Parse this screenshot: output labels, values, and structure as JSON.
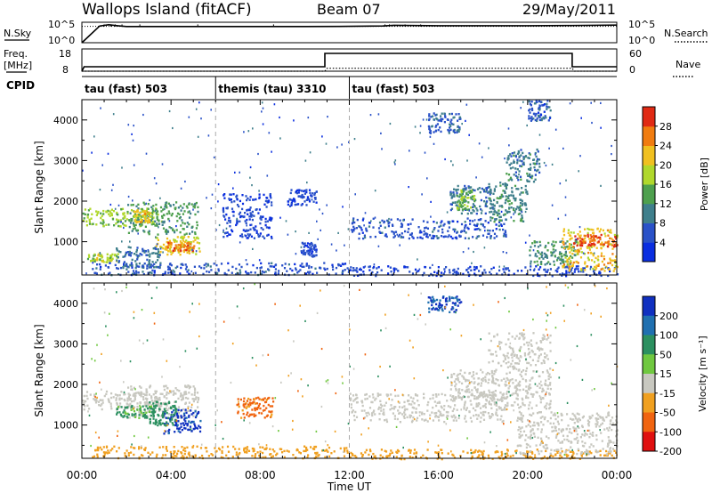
{
  "header": {
    "station": "Wallops Island (fitACF)",
    "beam": "Beam 07",
    "date": "29/May/2011"
  },
  "panels": {
    "nsky": {
      "left_label": "N.Sky",
      "right_label": "N.Search",
      "left_ticks": [
        "10^5",
        "10^0"
      ],
      "right_ticks": [
        "10^5",
        "10^0"
      ]
    },
    "freq": {
      "left_label_line1": "Freq.",
      "left_label_line2": "[MHz]",
      "right_label": "Nave",
      "left_ticks": [
        "18",
        "8"
      ],
      "right_ticks": [
        "60",
        "0"
      ]
    },
    "cpid": {
      "label": "CPID"
    }
  },
  "chart_data": [
    {
      "type": "line",
      "name": "N.Sky / N.Search",
      "x_unit": "hours UT",
      "y_scale": "log",
      "ylim": [
        1,
        100000
      ],
      "series": [
        {
          "name": "N.Sky",
          "style": "solid",
          "x": [
            0,
            0.8,
            1.2,
            1.6,
            2,
            4,
            6,
            8,
            10,
            12,
            13.5,
            14,
            16,
            18,
            20,
            22,
            24
          ],
          "y": [
            1,
            12000,
            25000,
            14000,
            9000,
            9000,
            9000,
            9000,
            9000,
            10000,
            12000,
            18000,
            14000,
            14000,
            14000,
            16000,
            20000
          ]
        },
        {
          "name": "N.Search",
          "style": "dotted",
          "x": [
            0,
            24
          ],
          "y": [
            10000,
            10000
          ]
        }
      ]
    },
    {
      "type": "line",
      "name": "Freq / Nave",
      "x_unit": "hours UT",
      "y_left_range_MHz": [
        8,
        18
      ],
      "y_right_range": [
        0,
        60
      ],
      "series": [
        {
          "name": "Freq.",
          "style": "solid",
          "x": [
            0,
            0.1,
            10.9,
            10.9,
            22,
            22,
            24
          ],
          "y": [
            8,
            10,
            10,
            16,
            16,
            10,
            10
          ]
        },
        {
          "name": "Nave",
          "style": "dotted",
          "x": [
            0,
            10.9,
            11,
            22,
            22.1,
            24
          ],
          "y": [
            0,
            0,
            8,
            8,
            0,
            0
          ]
        }
      ]
    },
    {
      "type": "table",
      "name": "CPID",
      "segments": [
        {
          "start": 0,
          "end": 6,
          "label": "tau (fast) 503"
        },
        {
          "start": 6,
          "end": 12,
          "label": "themis (tau) 3310"
        },
        {
          "start": 12,
          "end": 24,
          "label": "tau (fast) 503"
        }
      ]
    },
    {
      "type": "heatmap",
      "name": "Power",
      "x_unit": "hours UT",
      "xlim": [
        0,
        24
      ],
      "ylim": [
        180,
        4500
      ],
      "ylabel": "Slant Range [km]",
      "yticks": [
        1000,
        2000,
        3000,
        4000
      ],
      "colorbar": {
        "label": "Power [dB]",
        "range": [
          0,
          32
        ],
        "ticks": [
          4,
          8,
          12,
          16,
          20,
          24,
          28
        ],
        "colors": [
          "#0a2ee0",
          "#2a52c8",
          "#3f7f8c",
          "#4ea04e",
          "#b0d82c",
          "#f0c020",
          "#f07c10",
          "#e02a14"
        ]
      },
      "patches": [
        {
          "x": [
            0,
            3.6
          ],
          "y": [
            1400,
            1850
          ],
          "value": 17
        },
        {
          "x": [
            2,
            5.2
          ],
          "y": [
            1200,
            2000
          ],
          "value": 13
        },
        {
          "x": [
            2.3,
            3.1
          ],
          "y": [
            1500,
            1800
          ],
          "value": 22
        },
        {
          "x": [
            3.2,
            5.3
          ],
          "y": [
            700,
            1150
          ],
          "value": 20
        },
        {
          "x": [
            3.8,
            5.0
          ],
          "y": [
            800,
            1000
          ],
          "value": 26
        },
        {
          "x": [
            0.2,
            1.6
          ],
          "y": [
            520,
            720
          ],
          "value": 18
        },
        {
          "x": [
            1.5,
            3.5
          ],
          "y": [
            380,
            900
          ],
          "value": 9
        },
        {
          "x": [
            0.4,
            12
          ],
          "y": [
            200,
            500
          ],
          "value": 6
        },
        {
          "x": [
            6.3,
            8.5
          ],
          "y": [
            1100,
            2200
          ],
          "value": 5
        },
        {
          "x": [
            9.2,
            10.5
          ],
          "y": [
            1900,
            2300
          ],
          "value": 5
        },
        {
          "x": [
            9.8,
            10.5
          ],
          "y": [
            650,
            1000
          ],
          "value": 5
        },
        {
          "x": [
            12,
            24
          ],
          "y": [
            180,
            420
          ],
          "value": 5
        },
        {
          "x": [
            12,
            19
          ],
          "y": [
            1100,
            1600
          ],
          "value": 6
        },
        {
          "x": [
            16.5,
            18.5
          ],
          "y": [
            1700,
            2400
          ],
          "value": 9
        },
        {
          "x": [
            16.8,
            17.6
          ],
          "y": [
            1800,
            2300
          ],
          "value": 15
        },
        {
          "x": [
            18.2,
            20.0
          ],
          "y": [
            1500,
            2500
          ],
          "value": 11
        },
        {
          "x": [
            19.0,
            20.5
          ],
          "y": [
            2500,
            3300
          ],
          "value": 10
        },
        {
          "x": [
            20.0,
            22.2
          ],
          "y": [
            450,
            1050
          ],
          "value": 12
        },
        {
          "x": [
            21.5,
            24
          ],
          "y": [
            300,
            1350
          ],
          "value": 22
        },
        {
          "x": [
            22.0,
            24
          ],
          "y": [
            900,
            1200
          ],
          "value": 28
        },
        {
          "x": [
            15.5,
            17.0
          ],
          "y": [
            3700,
            4200
          ],
          "value": 7
        },
        {
          "x": [
            20.0,
            21.0
          ],
          "y": [
            4000,
            4500
          ],
          "value": 6
        }
      ]
    },
    {
      "type": "heatmap",
      "name": "Velocity",
      "x_unit": "hours UT",
      "xlim": [
        0,
        24
      ],
      "ylim": [
        180,
        4500
      ],
      "xticks": [
        "00:00",
        "04:00",
        "08:00",
        "12:00",
        "16:00",
        "20:00",
        "00:00"
      ],
      "xlabel": "Time UT",
      "ylabel": "Slant Range [km]",
      "yticks": [
        1000,
        2000,
        3000,
        4000
      ],
      "colorbar": {
        "label": "Velocity [m s⁻¹]",
        "ticks": [
          "200",
          "100",
          "50",
          "15",
          "-15",
          "-50",
          "-100",
          "-200"
        ],
        "colors": [
          "#1030c0",
          "#2070b0",
          "#2c9060",
          "#70c840",
          "#c8c8c0",
          "#f0a020",
          "#f06410",
          "#e01010"
        ]
      },
      "patches": [
        {
          "x": [
            0,
            3.6
          ],
          "y": [
            1400,
            1850
          ],
          "value": 0
        },
        {
          "x": [
            2,
            5.2
          ],
          "y": [
            1200,
            2000
          ],
          "value": 0
        },
        {
          "x": [
            3.6,
            5.3
          ],
          "y": [
            800,
            1400
          ],
          "value": 160
        },
        {
          "x": [
            3.0,
            4.2
          ],
          "y": [
            1000,
            1600
          ],
          "value": 60
        },
        {
          "x": [
            1.5,
            3.2
          ],
          "y": [
            1200,
            1500
          ],
          "value": 40
        },
        {
          "x": [
            6.9,
            8.6
          ],
          "y": [
            1200,
            1700
          ],
          "value": -60
        },
        {
          "x": [
            0.4,
            12
          ],
          "y": [
            200,
            500
          ],
          "value": -30
        },
        {
          "x": [
            12,
            24
          ],
          "y": [
            180,
            420
          ],
          "value": -30
        },
        {
          "x": [
            12,
            19
          ],
          "y": [
            1100,
            1800
          ],
          "value": 0
        },
        {
          "x": [
            16.5,
            18.5
          ],
          "y": [
            1700,
            2400
          ],
          "value": 0
        },
        {
          "x": [
            18.2,
            21.0
          ],
          "y": [
            1400,
            3300
          ],
          "value": 0
        },
        {
          "x": [
            19.5,
            24
          ],
          "y": [
            300,
            1350
          ],
          "value": 0
        },
        {
          "x": [
            15.5,
            17.0
          ],
          "y": [
            3800,
            4200
          ],
          "value": 150
        }
      ]
    }
  ]
}
